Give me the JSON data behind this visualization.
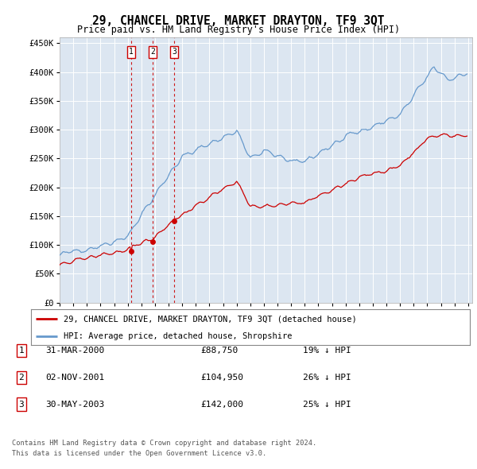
{
  "title": "29, CHANCEL DRIVE, MARKET DRAYTON, TF9 3QT",
  "subtitle": "Price paid vs. HM Land Registry's House Price Index (HPI)",
  "ylabel_ticks": [
    "£0",
    "£50K",
    "£100K",
    "£150K",
    "£200K",
    "£250K",
    "£300K",
    "£350K",
    "£400K",
    "£450K"
  ],
  "ytick_values": [
    0,
    50000,
    100000,
    150000,
    200000,
    250000,
    300000,
    350000,
    400000,
    450000
  ],
  "ylim": [
    0,
    460000
  ],
  "transactions": [
    {
      "num": 1,
      "date": "31-MAR-2000",
      "price": 88750,
      "price_str": "£88,750",
      "pct": "19%",
      "year": 2000.25
    },
    {
      "num": 2,
      "date": "02-NOV-2001",
      "price": 104950,
      "price_str": "£104,950",
      "pct": "26%",
      "year": 2001.83
    },
    {
      "num": 3,
      "date": "30-MAY-2003",
      "price": 142000,
      "price_str": "£142,000",
      "pct": "25%",
      "year": 2003.41
    }
  ],
  "legend_property": "29, CHANCEL DRIVE, MARKET DRAYTON, TF9 3QT (detached house)",
  "legend_hpi": "HPI: Average price, detached house, Shropshire",
  "footer1": "Contains HM Land Registry data © Crown copyright and database right 2024.",
  "footer2": "This data is licensed under the Open Government Licence v3.0.",
  "property_line_color": "#cc0000",
  "hpi_line_color": "#6699cc",
  "plot_bg_color": "#dce6f1",
  "grid_color": "#ffffff",
  "vline_color": "#cc0000",
  "marker_color": "#cc0000",
  "box_color": "#cc0000"
}
